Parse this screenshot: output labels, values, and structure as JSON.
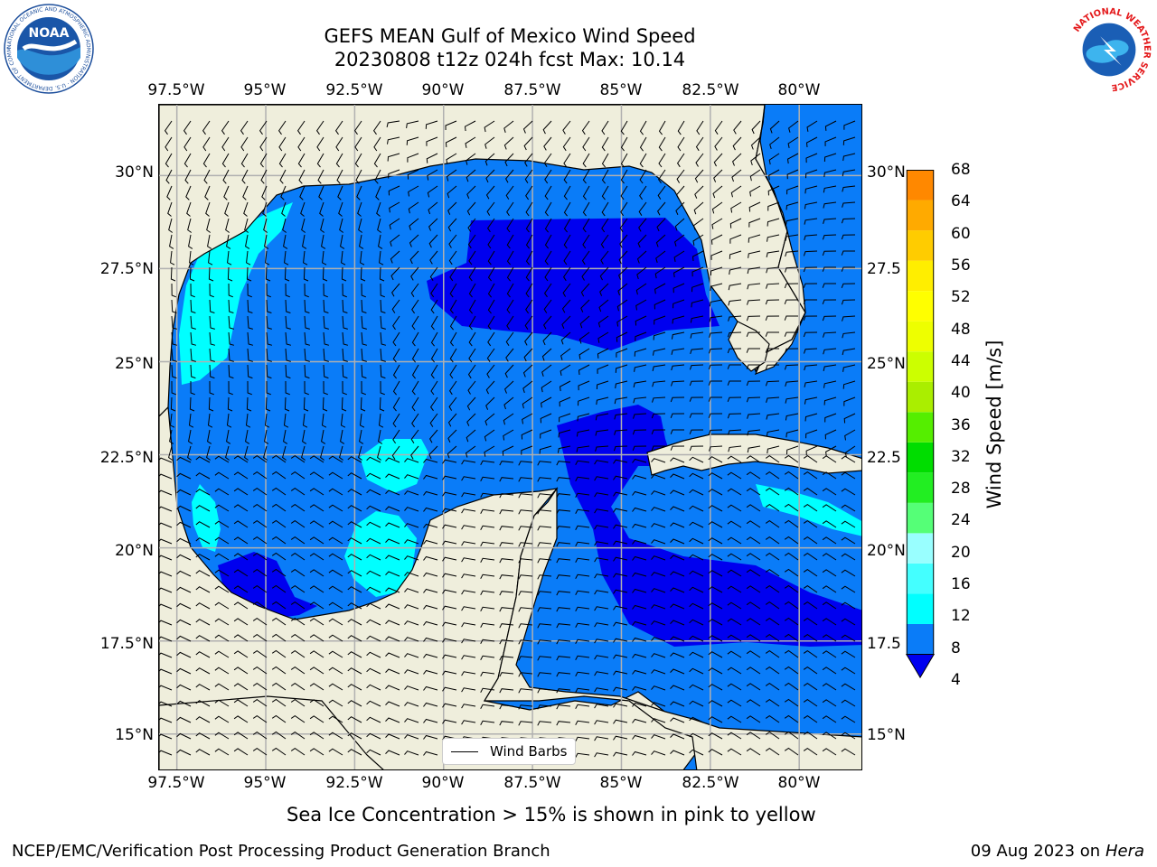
{
  "header": {
    "title_line1": "GEFS MEAN Gulf of Mexico Wind Speed",
    "title_line2": "20230808 t12z 024h fcst   Max: 10.14"
  },
  "map": {
    "lon_labels_top": [
      "97.5°W",
      "95°W",
      "92.5°W",
      "90°W",
      "87.5°W",
      "85°W",
      "82.5°W",
      "80°W"
    ],
    "lon_labels_bottom": [
      "97.5°W",
      "95°W",
      "92.5°W",
      "90°W",
      "87.5°W",
      "85°W",
      "82.5°W",
      "80°W"
    ],
    "lat_labels_left": [
      "30°N",
      "27.5°N",
      "25°N",
      "22.5°N",
      "20°N",
      "17.5°N",
      "15°N"
    ],
    "lat_labels_right": [
      "30°N",
      "27.5",
      "25°N",
      "22.5",
      "20°N",
      "17.5",
      "15°N"
    ],
    "lon_range": [
      -98,
      -78.2
    ],
    "lat_range": [
      14,
      31.9
    ],
    "colors": {
      "land": "#efeedc",
      "ws_4_8": "#0a7cf8",
      "ws_below_4": "#0000ef",
      "ws_8_12": "#00ffff",
      "grid": "#b0b0b0"
    }
  },
  "legend": {
    "label": "Wind Barbs"
  },
  "colorbar": {
    "label": "Wind Speed [m/s]",
    "ticks": [
      "68",
      "64",
      "60",
      "56",
      "52",
      "48",
      "44",
      "40",
      "36",
      "32",
      "28",
      "24",
      "20",
      "16",
      "12",
      "8",
      "4"
    ],
    "colors": [
      "#0a7cf8",
      "#00ffff",
      "#44ffff",
      "#99ffff",
      "#55ff77",
      "#22ee22",
      "#00dd00",
      "#55ee00",
      "#aaee00",
      "#ccff00",
      "#eeff00",
      "#ffff00",
      "#ffee00",
      "#ffcc00",
      "#ffaa00",
      "#ff8800",
      "#ff5500",
      "#ff2200",
      "#ff0000"
    ],
    "extend_color": "#0000ef"
  },
  "footer": {
    "sea_ice_note": "Sea Ice Concentration > 15% is shown in pink to yellow",
    "credit": "NCEP/EMC/Verification Post Processing Product Generation Branch",
    "run_date": "09 Aug 2023 on",
    "machine": "Hera"
  },
  "logos": {
    "noaa_text": "NOAA",
    "noaa_ring": "NATIONAL OCEANIC AND ATMOSPHERIC ADMINISTRATION · U.S. DEPARTMENT OF COMMERCE ·",
    "nws_ring": "NATIONAL WEATHER SERVICE"
  }
}
